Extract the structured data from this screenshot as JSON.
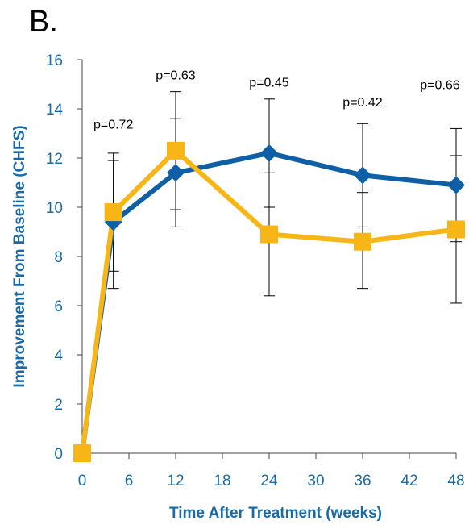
{
  "panel_label": "B.",
  "chart_data": {
    "type": "line",
    "title": "",
    "xlabel": "Time After Treatment (weeks)",
    "ylabel": "Improvement From Baseline (CHFS)",
    "xlim": [
      0,
      48
    ],
    "ylim": [
      0,
      16
    ],
    "xticks": [
      0,
      6,
      12,
      18,
      24,
      30,
      36,
      42,
      48
    ],
    "yticks": [
      0,
      2,
      4,
      6,
      8,
      10,
      12,
      14,
      16
    ],
    "x": [
      0,
      4,
      12,
      24,
      36,
      48
    ],
    "grid": false,
    "colors": {
      "axis_text": "#1a6aa8",
      "series_blue": "#0f5fa6",
      "series_gold": "#f8b516"
    },
    "series": [
      {
        "marker": "diamond",
        "color": "#0f5fa6",
        "values": [
          0,
          9.4,
          11.4,
          12.2,
          11.3,
          10.9
        ],
        "err_low": [
          0,
          7.4,
          9.2,
          10.0,
          9.2,
          8.6
        ],
        "err_high": [
          0,
          11.9,
          13.6,
          14.4,
          13.4,
          13.2
        ]
      },
      {
        "marker": "square",
        "color": "#f8b516",
        "values": [
          0,
          9.8,
          12.3,
          8.9,
          8.6,
          9.1
        ],
        "err_low": [
          0,
          6.7,
          9.9,
          6.4,
          6.7,
          6.1
        ],
        "err_high": [
          0,
          12.2,
          14.7,
          11.4,
          10.6,
          12.1
        ]
      }
    ],
    "annotations": [
      {
        "text": "p=0.72",
        "x": 4,
        "y": 13.2
      },
      {
        "text": "p=0.63",
        "x": 12,
        "y": 15.2
      },
      {
        "text": "p=0.45",
        "x": 24,
        "y": 14.9
      },
      {
        "text": "p=0.42",
        "x": 36,
        "y": 14.1
      },
      {
        "text": "p=0.66",
        "x": 48,
        "y": 14.8
      }
    ]
  }
}
